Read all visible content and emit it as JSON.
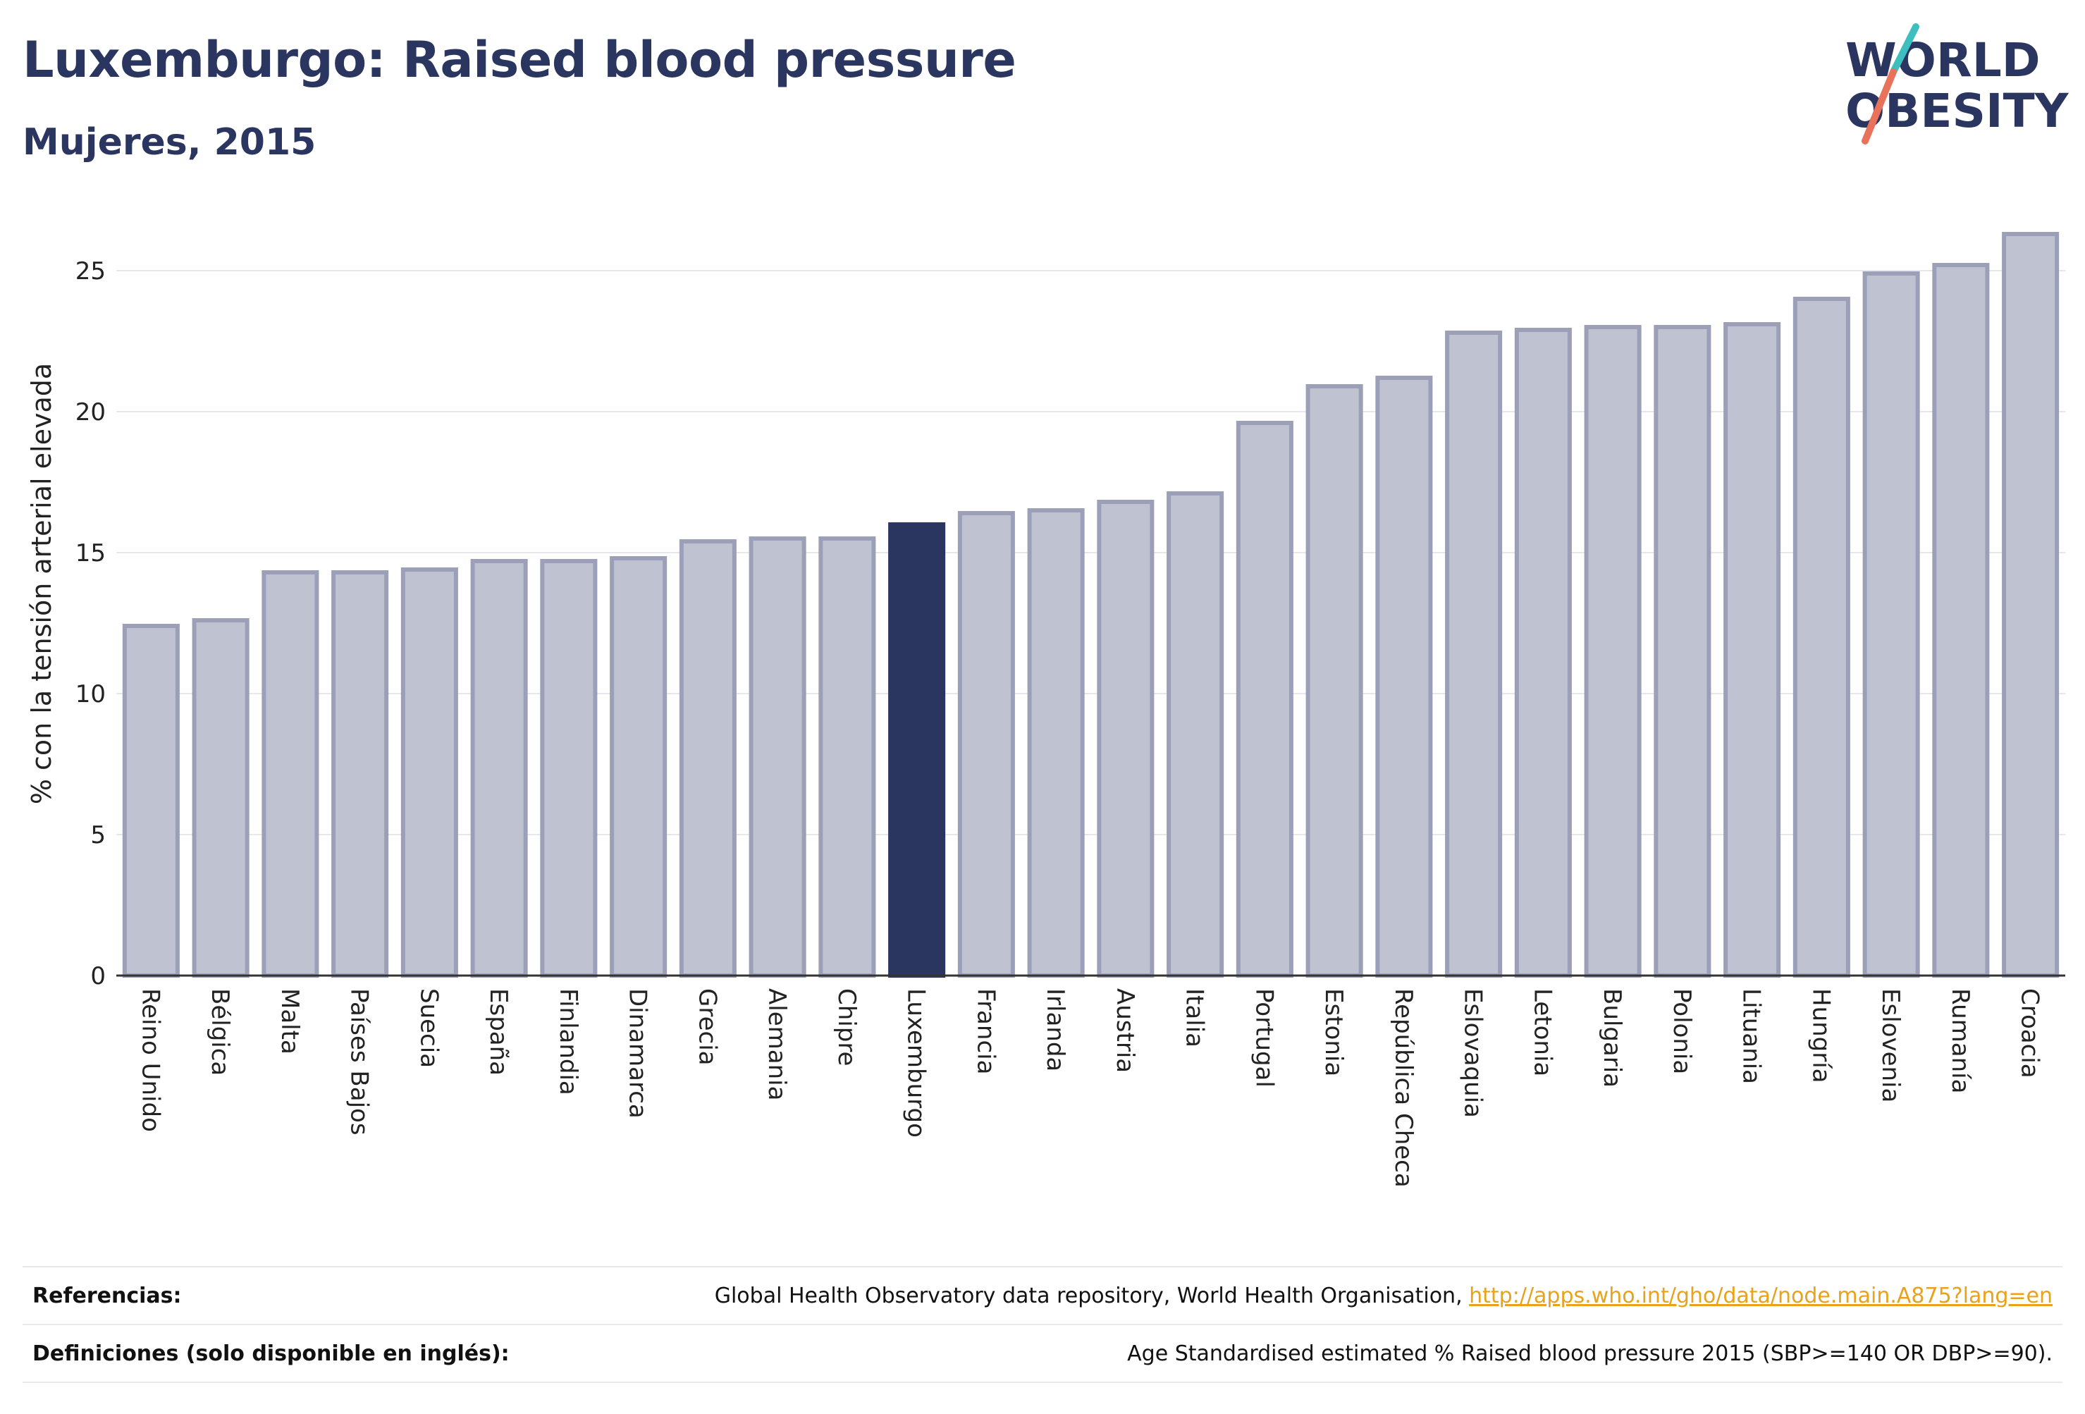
{
  "header": {
    "title": "Luxemburgo: Raised blood pressure",
    "subtitle": "Mujeres, 2015"
  },
  "logo": {
    "line1": "WORLD",
    "line2": "OBESITY",
    "colors": {
      "text": "#2a3560",
      "slash_teal": "#3ebfbf",
      "slash_coral": "#e8735a"
    }
  },
  "chart_data": {
    "type": "bar",
    "title": "Luxemburgo: Raised blood pressure",
    "subtitle": "Mujeres, 2015",
    "xlabel": "",
    "ylabel": "% con la tensión arterial elevada",
    "ylim": [
      0,
      27
    ],
    "yticks": [
      0,
      5,
      10,
      15,
      20,
      25
    ],
    "grid": true,
    "highlight": "Luxemburgo",
    "colors": {
      "bar": "#bfc2d0",
      "bar_border": "#9ba0b8",
      "highlight": "#2a3560"
    },
    "categories": [
      "Reino Unido",
      "Bélgica",
      "Malta",
      "Países Bajos",
      "Suecia",
      "España",
      "Finlandia",
      "Dinamarca",
      "Grecia",
      "Alemania",
      "Chipre",
      "Luxemburgo",
      "Francia",
      "Irlanda",
      "Austria",
      "Italia",
      "Portugal",
      "Estonia",
      "República Checa",
      "Eslovaquia",
      "Letonia",
      "Bulgaria",
      "Polonia",
      "Lituania",
      "Hungría",
      "Eslovenia",
      "Rumanía",
      "Croacia"
    ],
    "values": [
      12.4,
      12.6,
      14.3,
      14.3,
      14.4,
      14.7,
      14.7,
      14.8,
      15.4,
      15.5,
      15.5,
      16.0,
      16.4,
      16.5,
      16.8,
      17.1,
      19.6,
      20.9,
      21.2,
      22.8,
      22.9,
      23.0,
      23.0,
      23.1,
      24.0,
      24.9,
      25.2,
      26.3
    ]
  },
  "footer": {
    "references_label": "Referencias:",
    "references_text": "Global Health Observatory data repository, World Health Organisation, ",
    "references_link": "http://apps.who.int/gho/data/node.main.A875?lang=en",
    "definitions_label": "Definiciones (solo disponible en inglés):",
    "definitions_text": "Age Standardised estimated % Raised blood pressure 2015 (SBP>=140 OR DBP>=90)."
  }
}
